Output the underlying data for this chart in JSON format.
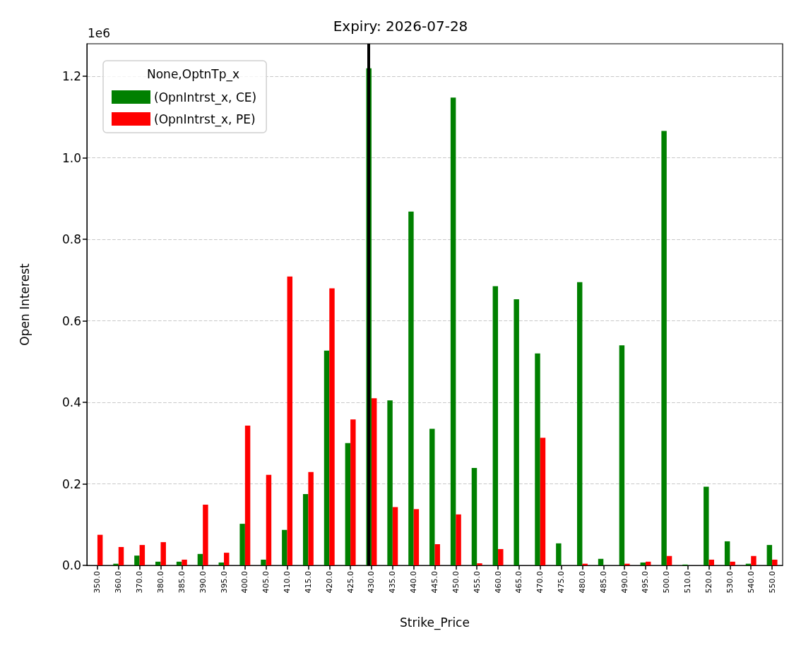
{
  "chart_data": {
    "type": "bar",
    "title": "Expiry: 2026-07-28",
    "xlabel": "Strike_Price",
    "ylabel": "Open Interest",
    "legend_title": "None,OptnTp_x",
    "annotations": [
      "1e6"
    ],
    "categories": [
      "350.0",
      "360.0",
      "370.0",
      "380.0",
      "385.0",
      "390.0",
      "395.0",
      "400.0",
      "405.0",
      "410.0",
      "415.0",
      "420.0",
      "425.0",
      "430.0",
      "435.0",
      "440.0",
      "445.0",
      "450.0",
      "455.0",
      "460.0",
      "465.0",
      "470.0",
      "475.0",
      "480.0",
      "485.0",
      "490.0",
      "495.0",
      "500.0",
      "510.0",
      "520.0",
      "530.0",
      "540.0",
      "550.0"
    ],
    "series": [
      {
        "name": "(OpnIntrst_x, CE)",
        "color": "#008000",
        "values": [
          0,
          0.004,
          0.024,
          0.009,
          0.009,
          0.028,
          0.007,
          0.102,
          0.014,
          0.087,
          0.175,
          0.527,
          0.3,
          1.22,
          0.405,
          0.868,
          0.335,
          1.148,
          0.239,
          0.685,
          0.653,
          0.52,
          0.054,
          0.695,
          0.016,
          0.54,
          0.007,
          1.066,
          0.002,
          0.193,
          0.059,
          0.004,
          0.05
        ]
      },
      {
        "name": "(OpnIntrst_x, PE)",
        "color": "#ff0000",
        "values": [
          0.075,
          0.045,
          0.05,
          0.057,
          0.014,
          0.149,
          0.031,
          0.343,
          0.222,
          0.709,
          0.229,
          0.68,
          0.358,
          0.41,
          0.143,
          0.138,
          0.052,
          0.125,
          0.005,
          0.04,
          0,
          0.313,
          0,
          0.004,
          0,
          0.004,
          0.009,
          0.023,
          0,
          0.014,
          0.009,
          0.023,
          0.014
        ]
      }
    ],
    "ylim": [
      0,
      1.28
    ],
    "yticks": [
      {
        "value": 0,
        "label": "0.0"
      },
      {
        "value": 0.2,
        "label": "0.2"
      },
      {
        "value": 0.4,
        "label": "0.4"
      },
      {
        "value": 0.6,
        "label": "0.6"
      },
      {
        "value": 0.8,
        "label": "0.8"
      },
      {
        "value": 1,
        "label": "1.0"
      },
      {
        "value": 1.2,
        "label": "1.2"
      }
    ],
    "ref_lines": [
      {
        "axis": "x",
        "value": "430.0",
        "color": "#000000",
        "line_style": "solid"
      }
    ],
    "grid": "y",
    "legend": "top left"
  }
}
